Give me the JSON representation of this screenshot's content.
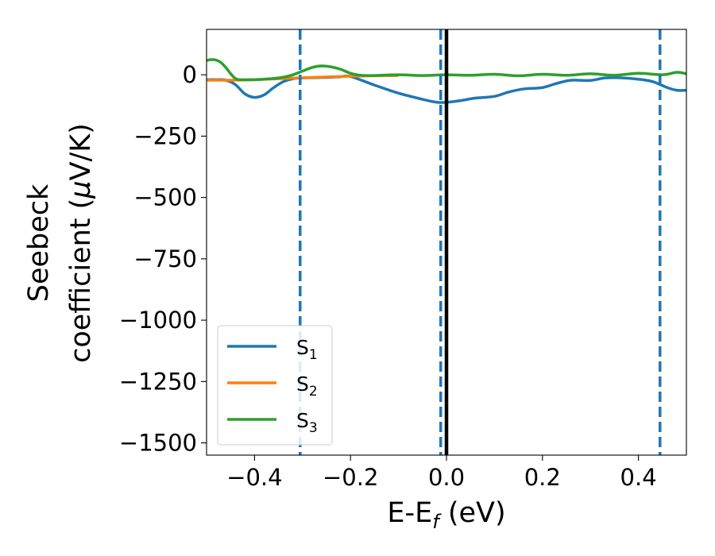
{
  "chart_data": {
    "type": "line",
    "xlabel": "E-E",
    "xlabel_sub": "f",
    "xlabel_unit": " (eV)",
    "ylabel_line1": "Seebeck",
    "ylabel_line2": "coefficient  (",
    "ylabel_mu": "μ",
    "ylabel_unit": "V/K)",
    "xlim": [
      -0.5,
      0.5
    ],
    "ylim": [
      -1550,
      185
    ],
    "xticks": [
      -0.4,
      -0.2,
      0.0,
      0.2,
      0.4
    ],
    "xtick_labels": [
      "−0.4",
      "−0.2",
      "0.0",
      "0.2",
      "0.4"
    ],
    "yticks": [
      0,
      -250,
      -500,
      -750,
      -1000,
      -1250,
      -1500
    ],
    "ytick_labels": [
      "0",
      "−250",
      "−500",
      "−750",
      "−1000",
      "−1250",
      "−1500"
    ],
    "legend_position": "lower-left",
    "vlines": [
      {
        "x": -0.305,
        "style": "dashed",
        "color": "#1f77b4"
      },
      {
        "x": -0.012,
        "style": "dashed",
        "color": "#1f77b4"
      },
      {
        "x": 0.0,
        "style": "solid",
        "color": "#000000"
      },
      {
        "x": 0.445,
        "style": "dashed",
        "color": "#1f77b4"
      }
    ],
    "series": [
      {
        "name": "S",
        "sub": "1",
        "color": "#1f77b4",
        "x": [
          -0.5,
          -0.48,
          -0.46,
          -0.44,
          -0.42,
          -0.4,
          -0.38,
          -0.36,
          -0.34,
          -0.32,
          -0.3,
          -0.28,
          -0.26,
          -0.24,
          -0.22,
          -0.2,
          -0.15,
          -0.1,
          -0.05,
          -0.02,
          0.0,
          0.03,
          0.06,
          0.1,
          0.13,
          0.16,
          0.2,
          0.23,
          0.26,
          0.3,
          0.33,
          0.36,
          0.4,
          0.43,
          0.46,
          0.48,
          0.5
        ],
        "y": [
          -20,
          -20,
          -22,
          -40,
          -78,
          -92,
          -82,
          -52,
          -28,
          -16,
          -13,
          -12,
          -11,
          -10,
          -8,
          -7,
          -42,
          -75,
          -100,
          -112,
          -112,
          -105,
          -95,
          -88,
          -70,
          -58,
          -52,
          -35,
          -22,
          -23,
          -13,
          -12,
          -18,
          -28,
          -52,
          -63,
          -63
        ]
      },
      {
        "name": "S",
        "sub": "2",
        "color": "#ff7f0e",
        "x": [
          -0.5,
          -0.45,
          -0.4,
          -0.35,
          -0.3,
          -0.25,
          -0.2,
          -0.15,
          -0.1
        ],
        "y": [
          -22,
          -22,
          -20,
          -16,
          -12,
          -9,
          -6,
          -4,
          -3
        ]
      },
      {
        "name": "S",
        "sub": "3",
        "color": "#2ca02c",
        "x": [
          -0.5,
          -0.49,
          -0.48,
          -0.47,
          -0.46,
          -0.45,
          -0.44,
          -0.43,
          -0.42,
          -0.4,
          -0.38,
          -0.36,
          -0.34,
          -0.32,
          -0.3,
          -0.28,
          -0.26,
          -0.24,
          -0.22,
          -0.2,
          -0.18,
          -0.15,
          -0.1,
          -0.05,
          0.0,
          0.05,
          0.1,
          0.15,
          0.2,
          0.25,
          0.3,
          0.35,
          0.4,
          0.45,
          0.48,
          0.5
        ],
        "y": [
          58,
          62,
          60,
          50,
          30,
          5,
          -15,
          -20,
          -20,
          -20,
          -18,
          -15,
          -10,
          0,
          15,
          30,
          36,
          32,
          22,
          6,
          -2,
          -3,
          0,
          -3,
          0,
          -2,
          2,
          -4,
          2,
          -2,
          4,
          -2,
          6,
          0,
          10,
          4
        ]
      }
    ]
  }
}
